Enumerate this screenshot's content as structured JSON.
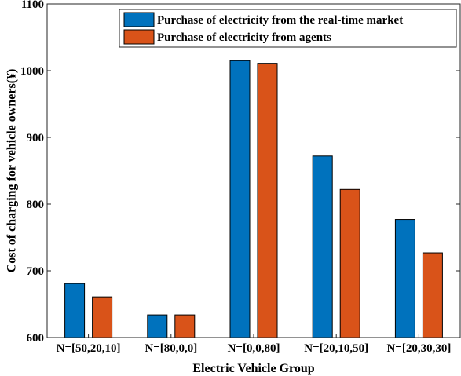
{
  "chart_data": {
    "type": "bar",
    "xlabel": "Electric Vehicle Group",
    "ylabel": "Cost of charging for vehicle owners(¥)",
    "ylim": [
      600,
      1100
    ],
    "yticks": [
      600,
      700,
      800,
      900,
      1000,
      1100
    ],
    "grid": false,
    "legend_position": "top-right",
    "categories": [
      "N=[50,20,10]",
      "N=[80,0,0]",
      "N=[0,0,80]",
      "N=[20,10,50]",
      "N=[20,30,30]"
    ],
    "series": [
      {
        "name": "Purchase of electricity from the real-time market",
        "color": "#0072BD",
        "values": [
          681,
          634,
          1015,
          872,
          777
        ]
      },
      {
        "name": "Purchase of electricity from agents",
        "color": "#D95319",
        "values": [
          661,
          634,
          1011,
          822,
          727
        ]
      }
    ]
  }
}
